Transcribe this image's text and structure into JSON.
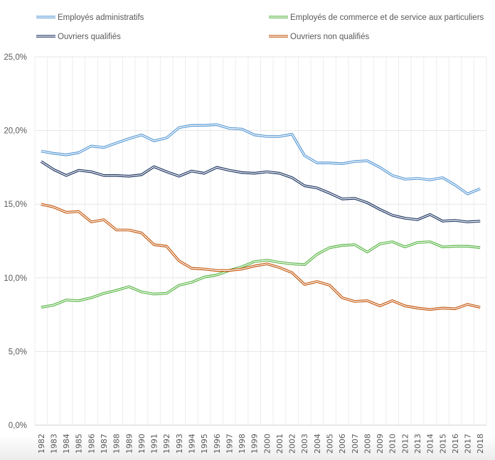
{
  "chart_data": {
    "type": "line",
    "title": "",
    "xlabel": "",
    "ylabel": "",
    "ylim": [
      0,
      25
    ],
    "yticks": [
      "0,0%",
      "5,0%",
      "10,0%",
      "15,0%",
      "20,0%",
      "25,0%"
    ],
    "ytick_values": [
      0,
      5,
      10,
      15,
      20,
      25
    ],
    "grid": true,
    "legend_position": "top",
    "categories": [
      "1982",
      "1983",
      "1984",
      "1985",
      "1986",
      "1987",
      "1988",
      "1989",
      "1990",
      "1991",
      "1992",
      "1993",
      "1994",
      "1995",
      "1996",
      "1997",
      "1998",
      "1999",
      "2000",
      "2001",
      "2002",
      "2003",
      "2004",
      "2005",
      "2006",
      "2007",
      "2008",
      "2009",
      "2010",
      "2012",
      "2013",
      "2014",
      "2015",
      "2016",
      "2017",
      "2018"
    ],
    "series": [
      {
        "name": "Employés administratifs",
        "color": "#5b9bd5",
        "values": [
          18.6,
          18.45,
          18.35,
          18.5,
          18.95,
          18.85,
          19.15,
          19.45,
          19.7,
          19.3,
          19.5,
          20.2,
          20.35,
          20.35,
          20.4,
          20.15,
          20.1,
          19.7,
          19.6,
          19.6,
          19.75,
          18.3,
          17.8,
          17.8,
          17.75,
          17.9,
          17.95,
          17.5,
          16.95,
          16.7,
          16.75,
          16.65,
          16.8,
          16.3,
          15.7,
          16.05
        ]
      },
      {
        "name": "Employés de commerce et de service aux particuliers",
        "color": "#5bb647",
        "values": [
          8.0,
          8.15,
          8.5,
          8.45,
          8.65,
          8.95,
          9.15,
          9.4,
          9.05,
          8.9,
          8.95,
          9.5,
          9.7,
          10.05,
          10.2,
          10.5,
          10.75,
          11.1,
          11.2,
          11.05,
          10.95,
          10.9,
          11.6,
          12.05,
          12.2,
          12.25,
          11.75,
          12.3,
          12.45,
          12.1,
          12.4,
          12.45,
          12.1,
          12.15,
          12.15,
          12.05
        ]
      },
      {
        "name": "Ouvriers qualifiés",
        "color": "#203864",
        "values": [
          17.9,
          17.35,
          16.95,
          17.3,
          17.2,
          16.95,
          16.95,
          16.9,
          17.0,
          17.55,
          17.2,
          16.9,
          17.25,
          17.1,
          17.5,
          17.3,
          17.15,
          17.1,
          17.2,
          17.1,
          16.8,
          16.25,
          16.1,
          15.75,
          15.35,
          15.4,
          15.1,
          14.65,
          14.25,
          14.05,
          13.95,
          14.3,
          13.85,
          13.9,
          13.8,
          13.85
        ]
      },
      {
        "name": "Ouvriers non qualifiés",
        "color": "#c55a11",
        "values": [
          15.0,
          14.8,
          14.45,
          14.5,
          13.8,
          13.95,
          13.25,
          13.25,
          13.05,
          12.25,
          12.15,
          11.15,
          10.65,
          10.6,
          10.5,
          10.5,
          10.6,
          10.8,
          10.95,
          10.7,
          10.35,
          9.55,
          9.75,
          9.5,
          8.65,
          8.4,
          8.45,
          8.1,
          8.45,
          8.1,
          7.95,
          7.85,
          7.95,
          7.9,
          8.2,
          8.0
        ]
      }
    ]
  }
}
